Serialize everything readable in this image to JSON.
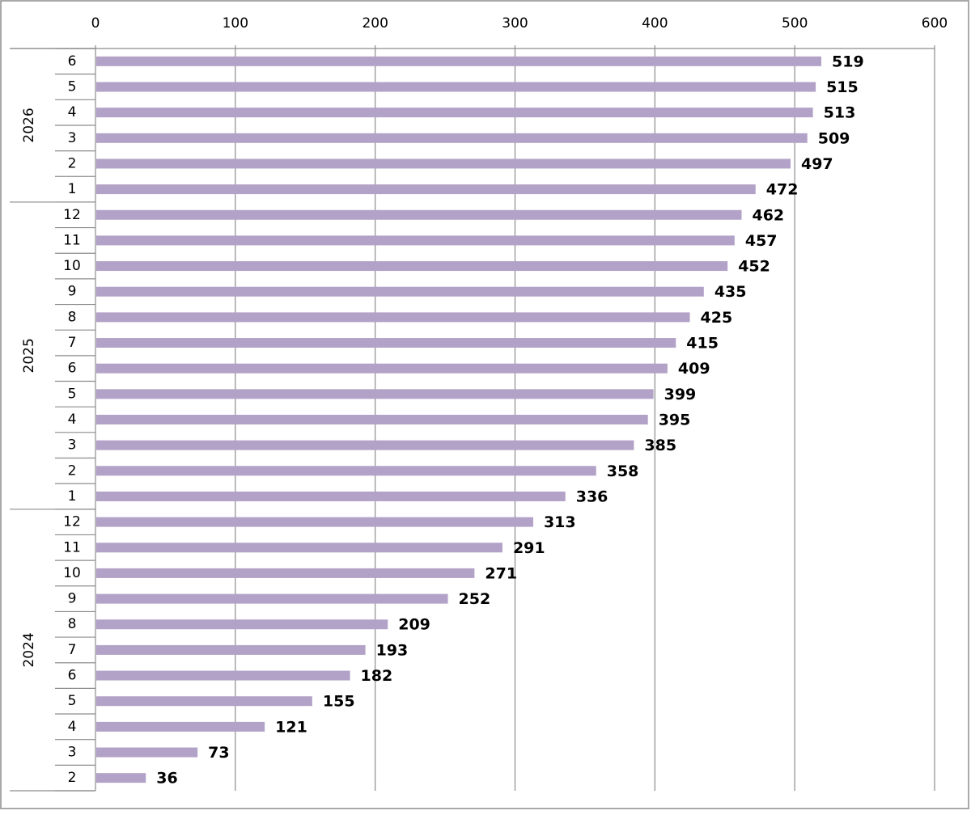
{
  "chart_data": {
    "type": "bar",
    "orientation": "horizontal",
    "xlim": [
      0,
      600
    ],
    "x_ticks": [
      "0",
      "100",
      "200",
      "300",
      "400",
      "500",
      "600"
    ],
    "grid": true,
    "legend": "none",
    "bar_color": "#b3a2c7",
    "groups": [
      {
        "label": "2024",
        "categories": [
          "2",
          "3",
          "4",
          "5",
          "6",
          "7",
          "8",
          "9",
          "10",
          "11",
          "12"
        ]
      },
      {
        "label": "2025",
        "categories": [
          "1",
          "2",
          "3",
          "4",
          "5",
          "6",
          "7",
          "8",
          "9",
          "10",
          "11",
          "12"
        ]
      },
      {
        "label": "2026",
        "categories": [
          "1",
          "2",
          "3",
          "4",
          "5",
          "6"
        ]
      }
    ],
    "values": [
      36,
      73,
      121,
      155,
      182,
      193,
      209,
      252,
      271,
      291,
      313,
      336,
      358,
      385,
      395,
      399,
      409,
      415,
      425,
      435,
      452,
      457,
      462,
      472,
      497,
      509,
      513,
      515,
      519
    ]
  }
}
